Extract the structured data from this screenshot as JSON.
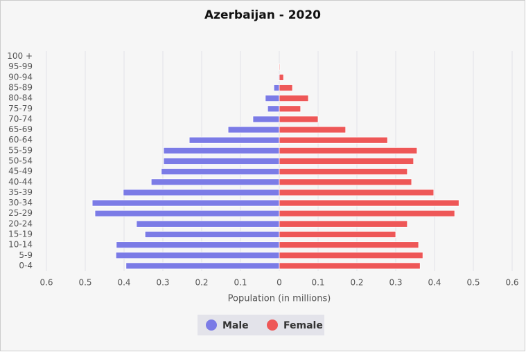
{
  "chart_data": {
    "type": "pyramid",
    "title": "Azerbaijan - 2020",
    "x_label": "Population (in millions)",
    "categories": [
      "0-4",
      "5-9",
      "10-14",
      "15-19",
      "20-24",
      "25-29",
      "30-34",
      "35-39",
      "40-44",
      "45-49",
      "50-54",
      "55-59",
      "60-64",
      "65-69",
      "70-74",
      "75-79",
      "80-84",
      "85-89",
      "90-94",
      "95-99",
      "100 +"
    ],
    "series": [
      {
        "name": "Male",
        "color": "#7b7be6",
        "values": [
          -0.395,
          -0.421,
          -0.42,
          -0.346,
          -0.368,
          -0.475,
          -0.482,
          -0.402,
          -0.33,
          -0.304,
          -0.298,
          -0.298,
          -0.232,
          -0.132,
          -0.068,
          -0.03,
          -0.036,
          -0.014,
          -0.002,
          -0.001,
          0
        ]
      },
      {
        "name": "Female",
        "color": "#ee5757",
        "values": [
          0.363,
          0.37,
          0.359,
          0.3,
          0.33,
          0.452,
          0.463,
          0.398,
          0.341,
          0.33,
          0.346,
          0.355,
          0.279,
          0.171,
          0.1,
          0.055,
          0.075,
          0.034,
          0.011,
          0.002,
          0
        ]
      }
    ],
    "xlim": [
      -0.6,
      0.6
    ],
    "xticks": [
      {
        "value": -0.6,
        "label": "0.6"
      },
      {
        "value": -0.5,
        "label": "0.5"
      },
      {
        "value": -0.4,
        "label": "0.4"
      },
      {
        "value": -0.3,
        "label": "0.3"
      },
      {
        "value": -0.2,
        "label": "0.2"
      },
      {
        "value": -0.1,
        "label": "0.1"
      },
      0,
      0.1,
      0.2,
      0.3,
      0.4,
      0.5,
      0.6
    ],
    "grid": true,
    "legend": "bottom"
  }
}
